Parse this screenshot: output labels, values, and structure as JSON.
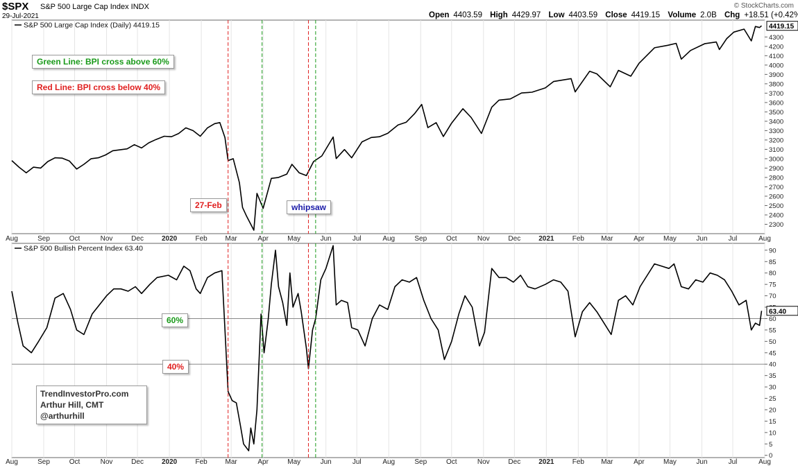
{
  "header": {
    "ticker": "$SPX",
    "name": "S&P 500 Large Cap Index  INDX",
    "date": "29-Jul-2021",
    "brand": "© StockCharts.com",
    "ohlc": [
      {
        "label": "Open",
        "value": "4403.59"
      },
      {
        "label": "High",
        "value": "4429.97"
      },
      {
        "label": "Low",
        "value": "4403.59"
      },
      {
        "label": "Close",
        "value": "4419.15"
      },
      {
        "label": "Volume",
        "value": "2.0B"
      },
      {
        "label": "Chg",
        "value": "+18.51 (+0.42%)"
      }
    ]
  },
  "annotations": {
    "green_note": "Green Line: BPI cross above 60%",
    "red_note": "Red Line: BPI cross below 40%",
    "feb_label": "27-Feb",
    "whipsaw_label": "whipsaw",
    "level60_label": "60%",
    "level40_label": "40%",
    "credit": [
      "TrendInvestorPro.com",
      "Arthur Hill, CMT",
      "@arthurhill"
    ]
  },
  "colors": {
    "price": "#000000",
    "bpi": "#000000",
    "green": "#1a9a1a",
    "red": "#e02020",
    "blue": "#1a1aa8",
    "grid": "#888888"
  },
  "chart_data": [
    {
      "type": "line",
      "title": "S&P 500 Large Cap Index (Daily) 4419.15",
      "last_value_label": "4419.15",
      "x_tick_labels": [
        "Aug",
        "Sep",
        "Oct",
        "Nov",
        "Dec",
        "2020",
        "Feb",
        "Mar",
        "Apr",
        "May",
        "Jun",
        "Jul",
        "Aug",
        "Sep",
        "Oct",
        "Nov",
        "Dec",
        "2021",
        "Feb",
        "Mar",
        "Apr",
        "May",
        "Jun",
        "Jul",
        "Aug"
      ],
      "y_ticks": [
        2300,
        2400,
        2500,
        2600,
        2700,
        2800,
        2900,
        3000,
        3100,
        3200,
        3300,
        3400,
        3500,
        3600,
        3700,
        3800,
        3900,
        4000,
        4100,
        4200,
        4300
      ],
      "ylim": [
        2200,
        4480
      ],
      "x_range": [
        "2019-08-01",
        "2021-08-01"
      ],
      "series": [
        {
          "name": "S&P 500 Large Cap Index",
          "points": [
            [
              "2019-08-01",
              2980
            ],
            [
              "2019-08-08",
              2910
            ],
            [
              "2019-08-15",
              2850
            ],
            [
              "2019-08-22",
              2910
            ],
            [
              "2019-08-29",
              2900
            ],
            [
              "2019-09-05",
              2970
            ],
            [
              "2019-09-12",
              3010
            ],
            [
              "2019-09-19",
              3006
            ],
            [
              "2019-09-26",
              2975
            ],
            [
              "2019-10-03",
              2890
            ],
            [
              "2019-10-10",
              2940
            ],
            [
              "2019-10-17",
              3000
            ],
            [
              "2019-10-24",
              3010
            ],
            [
              "2019-10-31",
              3040
            ],
            [
              "2019-11-07",
              3085
            ],
            [
              "2019-11-14",
              3095
            ],
            [
              "2019-11-21",
              3105
            ],
            [
              "2019-11-28",
              3150
            ],
            [
              "2019-12-05",
              3115
            ],
            [
              "2019-12-12",
              3170
            ],
            [
              "2019-12-19",
              3205
            ],
            [
              "2019-12-27",
              3240
            ],
            [
              "2020-01-03",
              3235
            ],
            [
              "2020-01-10",
              3270
            ],
            [
              "2020-01-17",
              3330
            ],
            [
              "2020-01-24",
              3300
            ],
            [
              "2020-01-31",
              3240
            ],
            [
              "2020-02-07",
              3330
            ],
            [
              "2020-02-14",
              3375
            ],
            [
              "2020-02-19",
              3386
            ],
            [
              "2020-02-24",
              3225
            ],
            [
              "2020-02-27",
              2980
            ],
            [
              "2020-03-03",
              3000
            ],
            [
              "2020-03-09",
              2745
            ],
            [
              "2020-03-12",
              2480
            ],
            [
              "2020-03-16",
              2386
            ],
            [
              "2020-03-23",
              2237
            ],
            [
              "2020-03-26",
              2630
            ],
            [
              "2020-04-01",
              2470
            ],
            [
              "2020-04-09",
              2790
            ],
            [
              "2020-04-16",
              2800
            ],
            [
              "2020-04-24",
              2836
            ],
            [
              "2020-04-29",
              2940
            ],
            [
              "2020-05-06",
              2850
            ],
            [
              "2020-05-13",
              2820
            ],
            [
              "2020-05-20",
              2970
            ],
            [
              "2020-05-28",
              3030
            ],
            [
              "2020-06-08",
              3232
            ],
            [
              "2020-06-11",
              3002
            ],
            [
              "2020-06-19",
              3098
            ],
            [
              "2020-06-26",
              3010
            ],
            [
              "2020-07-06",
              3180
            ],
            [
              "2020-07-15",
              3227
            ],
            [
              "2020-07-23",
              3235
            ],
            [
              "2020-07-31",
              3271
            ],
            [
              "2020-08-10",
              3360
            ],
            [
              "2020-08-18",
              3390
            ],
            [
              "2020-08-26",
              3480
            ],
            [
              "2020-09-02",
              3580
            ],
            [
              "2020-09-08",
              3332
            ],
            [
              "2020-09-16",
              3385
            ],
            [
              "2020-09-23",
              3237
            ],
            [
              "2020-10-01",
              3380
            ],
            [
              "2020-10-12",
              3534
            ],
            [
              "2020-10-20",
              3440
            ],
            [
              "2020-10-30",
              3270
            ],
            [
              "2020-11-09",
              3550
            ],
            [
              "2020-11-16",
              3626
            ],
            [
              "2020-11-27",
              3638
            ],
            [
              "2020-12-08",
              3702
            ],
            [
              "2020-12-18",
              3710
            ],
            [
              "2020-12-31",
              3756
            ],
            [
              "2021-01-08",
              3824
            ],
            [
              "2021-01-25",
              3855
            ],
            [
              "2021-01-29",
              3714
            ],
            [
              "2021-02-12",
              3934
            ],
            [
              "2021-02-19",
              3906
            ],
            [
              "2021-03-04",
              3768
            ],
            [
              "2021-03-12",
              3943
            ],
            [
              "2021-03-24",
              3881
            ],
            [
              "2021-04-01",
              4019
            ],
            [
              "2021-04-16",
              4185
            ],
            [
              "2021-04-29",
              4211
            ],
            [
              "2021-05-07",
              4232
            ],
            [
              "2021-05-12",
              4063
            ],
            [
              "2021-05-21",
              4156
            ],
            [
              "2021-06-04",
              4229
            ],
            [
              "2021-06-15",
              4246
            ],
            [
              "2021-06-18",
              4166
            ],
            [
              "2021-06-25",
              4281
            ],
            [
              "2021-07-02",
              4352
            ],
            [
              "2021-07-12",
              4384
            ],
            [
              "2021-07-19",
              4258
            ],
            [
              "2021-07-23",
              4412
            ],
            [
              "2021-07-27",
              4401
            ],
            [
              "2021-07-29",
              4419
            ]
          ]
        }
      ]
    },
    {
      "type": "line",
      "title": "S&P 500 Bullish Percent Index 63.40",
      "last_value_label": "63.40",
      "x_tick_labels": [
        "Aug",
        "Sep",
        "Oct",
        "Nov",
        "Dec",
        "2020",
        "Feb",
        "Mar",
        "Apr",
        "May",
        "Jun",
        "Jul",
        "Aug",
        "Sep",
        "Oct",
        "Nov",
        "Dec",
        "2021",
        "Feb",
        "Mar",
        "Apr",
        "May",
        "Jun",
        "Jul",
        "Aug"
      ],
      "y_ticks": [
        0,
        5,
        10,
        15,
        20,
        25,
        30,
        35,
        40,
        45,
        50,
        55,
        60,
        65,
        70,
        75,
        80,
        85,
        90
      ],
      "ylim": [
        -1,
        93
      ],
      "x_range": [
        "2019-08-01",
        "2021-08-01"
      ],
      "horizontal_lines": [
        60,
        40
      ],
      "series": [
        {
          "name": "S&P 500 Bullish Percent Index",
          "points": [
            [
              "2019-08-01",
              72
            ],
            [
              "2019-08-07",
              58
            ],
            [
              "2019-08-12",
              48
            ],
            [
              "2019-08-20",
              45
            ],
            [
              "2019-08-27",
              50
            ],
            [
              "2019-09-04",
              56
            ],
            [
              "2019-09-12",
              69
            ],
            [
              "2019-09-20",
              71
            ],
            [
              "2019-09-27",
              64
            ],
            [
              "2019-10-03",
              55
            ],
            [
              "2019-10-10",
              53
            ],
            [
              "2019-10-18",
              62
            ],
            [
              "2019-10-25",
              66
            ],
            [
              "2019-11-01",
              70
            ],
            [
              "2019-11-08",
              73
            ],
            [
              "2019-11-15",
              73
            ],
            [
              "2019-11-22",
              72
            ],
            [
              "2019-11-29",
              74
            ],
            [
              "2019-12-05",
              71
            ],
            [
              "2019-12-13",
              75
            ],
            [
              "2019-12-20",
              78
            ],
            [
              "2019-12-31",
              79
            ],
            [
              "2020-01-08",
              77
            ],
            [
              "2020-01-15",
              83
            ],
            [
              "2020-01-21",
              81
            ],
            [
              "2020-01-27",
              73
            ],
            [
              "2020-01-31",
              71
            ],
            [
              "2020-02-07",
              78
            ],
            [
              "2020-02-14",
              80
            ],
            [
              "2020-02-21",
              81
            ],
            [
              "2020-02-24",
              55
            ],
            [
              "2020-02-27",
              28
            ],
            [
              "2020-03-02",
              24
            ],
            [
              "2020-03-06",
              23
            ],
            [
              "2020-03-10",
              13
            ],
            [
              "2020-03-13",
              5
            ],
            [
              "2020-03-18",
              2
            ],
            [
              "2020-03-20",
              12
            ],
            [
              "2020-03-23",
              5
            ],
            [
              "2020-03-26",
              20
            ],
            [
              "2020-03-30",
              62
            ],
            [
              "2020-04-02",
              45
            ],
            [
              "2020-04-06",
              60
            ],
            [
              "2020-04-09",
              75
            ],
            [
              "2020-04-13",
              90
            ],
            [
              "2020-04-16",
              74
            ],
            [
              "2020-04-20",
              67
            ],
            [
              "2020-04-24",
              57
            ],
            [
              "2020-04-27",
              80
            ],
            [
              "2020-04-30",
              65
            ],
            [
              "2020-05-05",
              71
            ],
            [
              "2020-05-08",
              63
            ],
            [
              "2020-05-13",
              47
            ],
            [
              "2020-05-15",
              38
            ],
            [
              "2020-05-19",
              55
            ],
            [
              "2020-05-22",
              60
            ],
            [
              "2020-05-27",
              77
            ],
            [
              "2020-06-01",
              82
            ],
            [
              "2020-06-08",
              92
            ],
            [
              "2020-06-11",
              66
            ],
            [
              "2020-06-16",
              68
            ],
            [
              "2020-06-22",
              67
            ],
            [
              "2020-06-26",
              56
            ],
            [
              "2020-07-02",
              55
            ],
            [
              "2020-07-09",
              48
            ],
            [
              "2020-07-16",
              60
            ],
            [
              "2020-07-23",
              66
            ],
            [
              "2020-07-31",
              64
            ],
            [
              "2020-08-07",
              74
            ],
            [
              "2020-08-14",
              77
            ],
            [
              "2020-08-21",
              76
            ],
            [
              "2020-08-28",
              78
            ],
            [
              "2020-09-04",
              68
            ],
            [
              "2020-09-11",
              60
            ],
            [
              "2020-09-18",
              55
            ],
            [
              "2020-09-24",
              42
            ],
            [
              "2020-10-01",
              50
            ],
            [
              "2020-10-08",
              62
            ],
            [
              "2020-10-14",
              70
            ],
            [
              "2020-10-21",
              65
            ],
            [
              "2020-10-28",
              48
            ],
            [
              "2020-11-02",
              54
            ],
            [
              "2020-11-09",
              82
            ],
            [
              "2020-11-16",
              78
            ],
            [
              "2020-11-23",
              78
            ],
            [
              "2020-11-30",
              76
            ],
            [
              "2020-12-07",
              79
            ],
            [
              "2020-12-14",
              74
            ],
            [
              "2020-12-21",
              73
            ],
            [
              "2020-12-31",
              75
            ],
            [
              "2021-01-08",
              77
            ],
            [
              "2021-01-15",
              76
            ],
            [
              "2021-01-22",
              72
            ],
            [
              "2021-01-29",
              52
            ],
            [
              "2021-02-05",
              63
            ],
            [
              "2021-02-12",
              67
            ],
            [
              "2021-02-19",
              63
            ],
            [
              "2021-02-26",
              58
            ],
            [
              "2021-03-05",
              53
            ],
            [
              "2021-03-12",
              68
            ],
            [
              "2021-03-19",
              70
            ],
            [
              "2021-03-26",
              66
            ],
            [
              "2021-04-02",
              74
            ],
            [
              "2021-04-09",
              79
            ],
            [
              "2021-04-16",
              84
            ],
            [
              "2021-04-23",
              83
            ],
            [
              "2021-04-30",
              82
            ],
            [
              "2021-05-05",
              84
            ],
            [
              "2021-05-12",
              74
            ],
            [
              "2021-05-19",
              73
            ],
            [
              "2021-05-26",
              77
            ],
            [
              "2021-06-02",
              76
            ],
            [
              "2021-06-09",
              80
            ],
            [
              "2021-06-16",
              79
            ],
            [
              "2021-06-23",
              77
            ],
            [
              "2021-06-30",
              72
            ],
            [
              "2021-07-07",
              66
            ],
            [
              "2021-07-14",
              68
            ],
            [
              "2021-07-19",
              55
            ],
            [
              "2021-07-23",
              58
            ],
            [
              "2021-07-27",
              57
            ],
            [
              "2021-07-29",
              63.4
            ]
          ]
        }
      ]
    }
  ],
  "event_lines": [
    {
      "date": "2020-02-27",
      "color": "red"
    },
    {
      "date": "2020-03-31",
      "color": "green"
    },
    {
      "date": "2020-05-15",
      "color": "red"
    },
    {
      "date": "2020-05-22",
      "color": "green"
    }
  ]
}
